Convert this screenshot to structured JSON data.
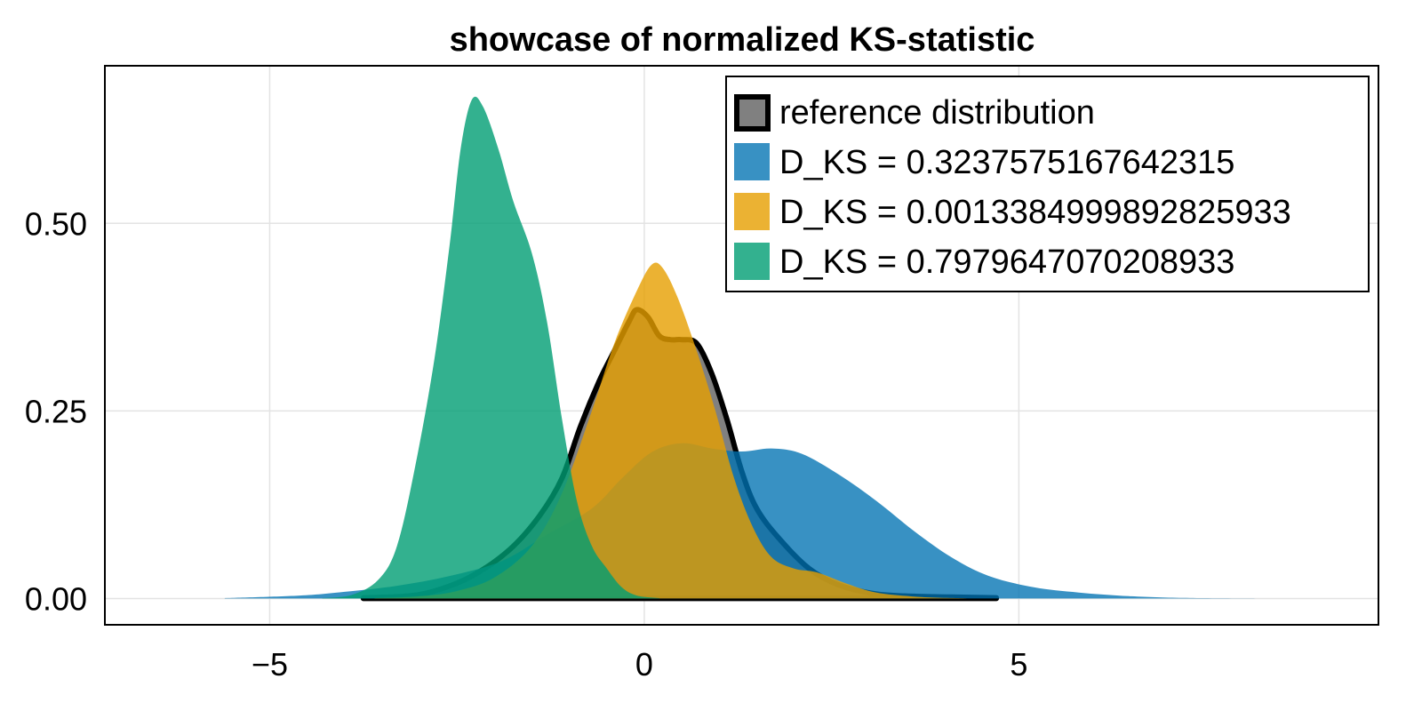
{
  "chart_data": {
    "type": "area",
    "title": "showcase of normalized KS-statistic",
    "xlabel": "",
    "ylabel": "",
    "xlim": [
      -7.2,
      9.8
    ],
    "ylim": [
      -0.035,
      0.71
    ],
    "x_ticks": [
      -5,
      0,
      5
    ],
    "x_tick_labels": [
      "−5",
      "0",
      "5"
    ],
    "y_ticks": [
      0,
      0.25,
      0.5
    ],
    "y_tick_labels": [
      "0.00",
      "0.25",
      "0.50"
    ],
    "grid": true,
    "legend_position": "top-right",
    "series": [
      {
        "name": "reference distribution",
        "fill": "#808080",
        "stroke": "#000000",
        "stroke_width": 6,
        "fill_opacity": 1,
        "points": [
          [
            -3.75,
            0.001
          ],
          [
            -3.2,
            0.003
          ],
          [
            -2.8,
            0.01
          ],
          [
            -2.3,
            0.03
          ],
          [
            -1.8,
            0.065
          ],
          [
            -1.4,
            0.11
          ],
          [
            -1.1,
            0.16
          ],
          [
            -0.85,
            0.23
          ],
          [
            -0.6,
            0.29
          ],
          [
            -0.4,
            0.33
          ],
          [
            -0.2,
            0.37
          ],
          [
            -0.1,
            0.385
          ],
          [
            0.05,
            0.375
          ],
          [
            0.2,
            0.35
          ],
          [
            0.35,
            0.345
          ],
          [
            0.5,
            0.345
          ],
          [
            0.7,
            0.34
          ],
          [
            0.9,
            0.3
          ],
          [
            1.1,
            0.24
          ],
          [
            1.3,
            0.17
          ],
          [
            1.5,
            0.12
          ],
          [
            1.8,
            0.08
          ],
          [
            2.2,
            0.04
          ],
          [
            2.6,
            0.018
          ],
          [
            3.1,
            0.006
          ],
          [
            3.6,
            0.003
          ],
          [
            4.1,
            0.002
          ],
          [
            4.7,
            0.001
          ]
        ]
      },
      {
        "name": "D_KS = 0.3237575167642315",
        "fill": "#0072B2",
        "stroke": "none",
        "fill_opacity": 0.78,
        "points": [
          [
            -5.6,
            0.0005
          ],
          [
            -4.6,
            0.004
          ],
          [
            -4.0,
            0.009
          ],
          [
            -3.3,
            0.017
          ],
          [
            -2.6,
            0.03
          ],
          [
            -1.9,
            0.05
          ],
          [
            -1.3,
            0.085
          ],
          [
            -0.7,
            0.12
          ],
          [
            -0.3,
            0.16
          ],
          [
            0.1,
            0.195
          ],
          [
            0.5,
            0.207
          ],
          [
            0.9,
            0.2
          ],
          [
            1.3,
            0.196
          ],
          [
            1.7,
            0.2
          ],
          [
            2.1,
            0.193
          ],
          [
            2.6,
            0.165
          ],
          [
            3.1,
            0.13
          ],
          [
            3.6,
            0.09
          ],
          [
            4.1,
            0.055
          ],
          [
            4.6,
            0.03
          ],
          [
            5.2,
            0.015
          ],
          [
            5.8,
            0.008
          ],
          [
            6.5,
            0.003
          ],
          [
            7.2,
            0.0008
          ],
          [
            8.2,
            0.0001
          ]
        ]
      },
      {
        "name": "D_KS = 0.0013384999892825933",
        "fill": "#E69F00",
        "stroke": "none",
        "fill_opacity": 0.8,
        "points": [
          [
            -3.6,
            0.0005
          ],
          [
            -3.0,
            0.003
          ],
          [
            -2.5,
            0.01
          ],
          [
            -2.0,
            0.028
          ],
          [
            -1.5,
            0.07
          ],
          [
            -1.1,
            0.14
          ],
          [
            -0.7,
            0.25
          ],
          [
            -0.4,
            0.34
          ],
          [
            -0.1,
            0.41
          ],
          [
            0.1,
            0.445
          ],
          [
            0.25,
            0.44
          ],
          [
            0.45,
            0.4
          ],
          [
            0.7,
            0.33
          ],
          [
            0.95,
            0.25
          ],
          [
            1.2,
            0.16
          ],
          [
            1.45,
            0.095
          ],
          [
            1.7,
            0.055
          ],
          [
            2.0,
            0.04
          ],
          [
            2.3,
            0.035
          ],
          [
            2.7,
            0.02
          ],
          [
            3.1,
            0.008
          ],
          [
            3.7,
            0.002
          ],
          [
            4.3,
            0.0002
          ]
        ]
      },
      {
        "name": "D_KS = 0.7979647070208933",
        "fill": "#009E73",
        "stroke": "none",
        "fill_opacity": 0.8,
        "points": [
          [
            -4.3,
            0.0005
          ],
          [
            -3.9,
            0.005
          ],
          [
            -3.55,
            0.025
          ],
          [
            -3.3,
            0.07
          ],
          [
            -3.05,
            0.18
          ],
          [
            -2.8,
            0.32
          ],
          [
            -2.6,
            0.47
          ],
          [
            -2.45,
            0.6
          ],
          [
            -2.3,
            0.665
          ],
          [
            -2.15,
            0.655
          ],
          [
            -1.95,
            0.6
          ],
          [
            -1.75,
            0.53
          ],
          [
            -1.5,
            0.46
          ],
          [
            -1.3,
            0.37
          ],
          [
            -1.1,
            0.24
          ],
          [
            -0.9,
            0.13
          ],
          [
            -0.7,
            0.07
          ],
          [
            -0.5,
            0.04
          ],
          [
            -0.3,
            0.015
          ],
          [
            -0.1,
            0.004
          ],
          [
            0.2,
            0.0005
          ]
        ]
      }
    ]
  }
}
